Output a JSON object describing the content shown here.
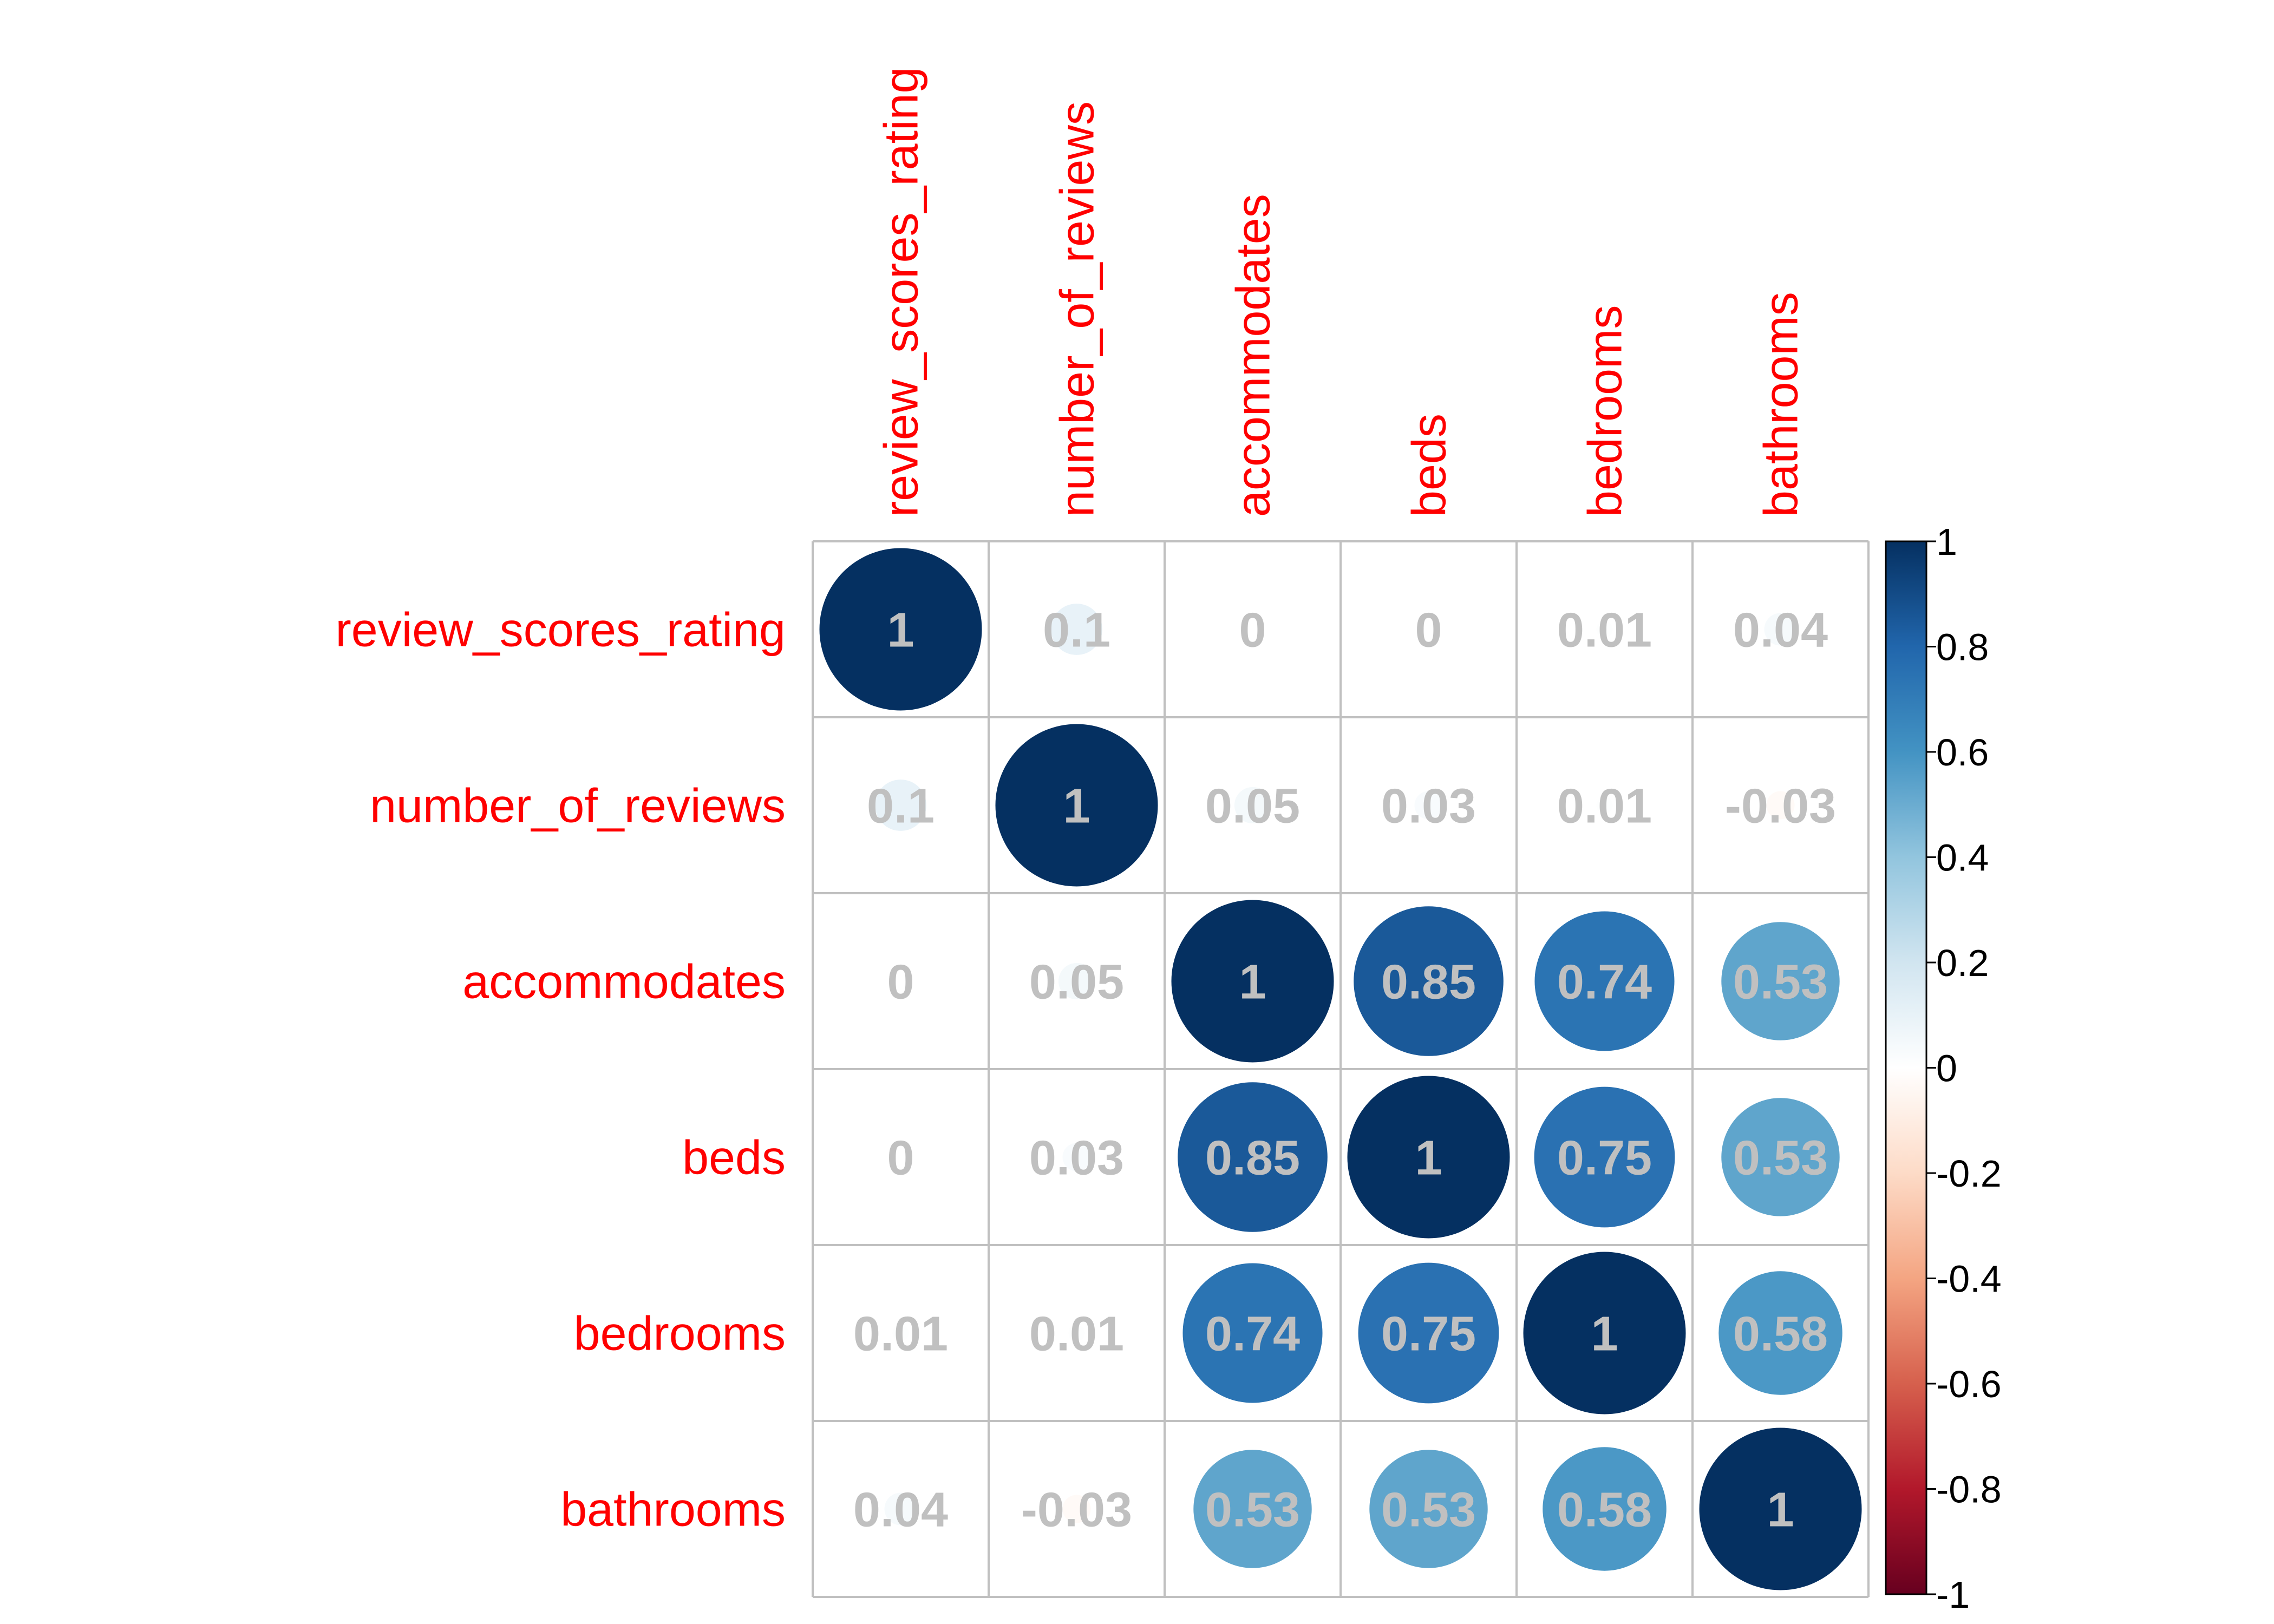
{
  "chart_data": {
    "type": "heatmap",
    "variables": [
      "review_scores_rating",
      "number_of_reviews",
      "accommodates",
      "beds",
      "bedrooms",
      "bathrooms"
    ],
    "matrix": [
      [
        1,
        0.1,
        0,
        0,
        0.01,
        0.04
      ],
      [
        0.1,
        1,
        0.05,
        0.03,
        0.01,
        -0.03
      ],
      [
        0,
        0.05,
        1,
        0.85,
        0.74,
        0.53
      ],
      [
        0,
        0.03,
        0.85,
        1,
        0.75,
        0.53
      ],
      [
        0.01,
        0.01,
        0.74,
        0.75,
        1,
        0.58
      ],
      [
        0.04,
        -0.03,
        0.53,
        0.53,
        0.58,
        1
      ]
    ],
    "value_labels": [
      [
        "1",
        "0.1",
        "0",
        "0",
        "0.01",
        "0.04"
      ],
      [
        "0.1",
        "1",
        "0.05",
        "0.03",
        "0.01",
        "-0.03"
      ],
      [
        "0",
        "0.05",
        "1",
        "0.85",
        "0.74",
        "0.53"
      ],
      [
        "0",
        "0.03",
        "0.85",
        "1",
        "0.75",
        "0.53"
      ],
      [
        "0.01",
        "0.01",
        "0.74",
        "0.75",
        "1",
        "0.58"
      ],
      [
        "0.04",
        "-0.03",
        "0.53",
        "0.53",
        "0.58",
        "1"
      ]
    ],
    "colorbar": {
      "range": [
        -1,
        1
      ],
      "ticks": [
        1,
        0.8,
        0.6,
        0.4,
        0.2,
        0,
        -0.2,
        -0.4,
        -0.6,
        -0.8,
        -1
      ],
      "tick_labels": [
        "1",
        "0.8",
        "0.6",
        "0.4",
        "0.2",
        "0",
        "-0.2",
        "-0.4",
        "-0.6",
        "-0.8",
        "-1"
      ],
      "position": "right"
    },
    "marker": "circle",
    "colors": {
      "label": "#ff0000",
      "value_text": "#c0c0c0",
      "grid": "#c0c0c0",
      "scale": [
        "#67001f",
        "#b2182b",
        "#d6604d",
        "#f4a582",
        "#fddbc7",
        "#ffffff",
        "#d1e5f0",
        "#92c5de",
        "#4393c3",
        "#2166ac",
        "#053061"
      ]
    }
  }
}
